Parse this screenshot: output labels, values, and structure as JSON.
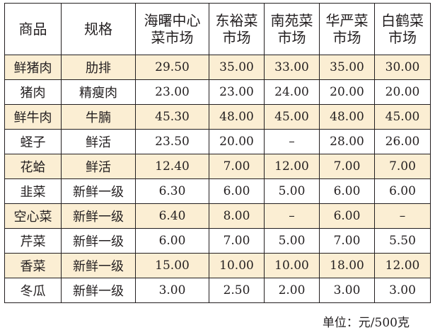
{
  "table": {
    "headers": [
      {
        "line1": "商品",
        "line2": ""
      },
      {
        "line1": "规格",
        "line2": ""
      },
      {
        "line1": "海曙中心",
        "line2": "菜市场"
      },
      {
        "line1": "东裕菜",
        "line2": "市场"
      },
      {
        "line1": "南苑菜",
        "line2": "市场"
      },
      {
        "line1": "华严菜",
        "line2": "市场"
      },
      {
        "line1": "白鹤菜",
        "line2": "市场"
      }
    ],
    "rows": [
      {
        "name": "鲜猪肉",
        "spec": "肋排",
        "prices": [
          "29.50",
          "35.00",
          "33.00",
          "35.00",
          "30.00"
        ]
      },
      {
        "name": "猪肉",
        "spec": "精瘦肉",
        "prices": [
          "23.00",
          "23.00",
          "24.00",
          "20.00",
          "20.00"
        ]
      },
      {
        "name": "鲜牛肉",
        "spec": "牛腩",
        "prices": [
          "45.30",
          "48.00",
          "45.00",
          "48.00",
          "45.00"
        ]
      },
      {
        "name": "蛏子",
        "spec": "鲜活",
        "prices": [
          "23.50",
          "20.00",
          "–",
          "28.00",
          "26.00"
        ]
      },
      {
        "name": "花蛤",
        "spec": "鲜活",
        "prices": [
          "12.40",
          "7.00",
          "12.00",
          "7.00",
          "7.00"
        ]
      },
      {
        "name": "韭菜",
        "spec": "新鲜一级",
        "prices": [
          "6.30",
          "6.00",
          "5.00",
          "6.00",
          "6.00"
        ]
      },
      {
        "name": "空心菜",
        "spec": "新鲜一级",
        "prices": [
          "6.40",
          "8.00",
          "–",
          "6.00",
          "–"
        ]
      },
      {
        "name": "芹菜",
        "spec": "新鲜一级",
        "prices": [
          "6.00",
          "7.00",
          "5.00",
          "7.00",
          "5.50"
        ]
      },
      {
        "name": "香菜",
        "spec": "新鲜一级",
        "prices": [
          "15.00",
          "10.00",
          "10.00",
          "18.00",
          "12.00"
        ]
      },
      {
        "name": "冬瓜",
        "spec": "新鲜一级",
        "prices": [
          "3.00",
          "2.50",
          "2.00",
          "3.00",
          "3.00"
        ]
      }
    ]
  },
  "unit_note": "单位：元/500克",
  "colors": {
    "shaded_row": "#fbeed3",
    "text": "#231f20"
  }
}
